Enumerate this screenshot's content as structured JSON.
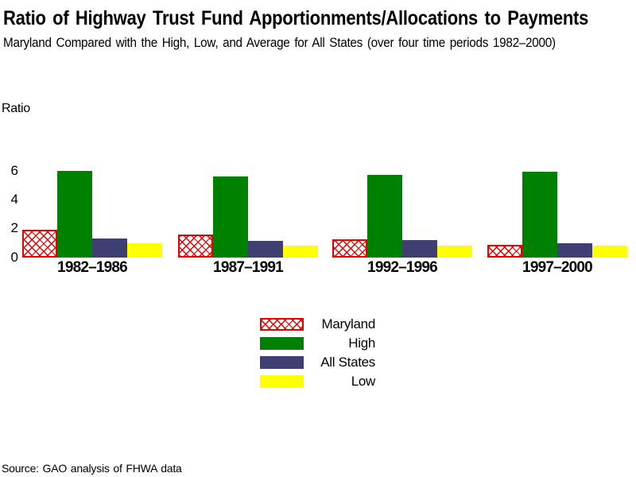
{
  "header": {
    "title": "Ratio of Highway Trust Fund Apportionments/Allocations to Payments",
    "subtitle": "Maryland Compared with the High, Low, and Average for All States (over four time periods 1982–2000)"
  },
  "chart_data": {
    "type": "bar",
    "title": "Ratio of Highway Trust Fund Apportionments/Allocations to Payments",
    "subtitle": "Maryland Compared with the High, Low, and Average for All States (over four time periods 1982–2000)",
    "ylabel": "Ratio",
    "xlabel": "",
    "ylim": [
      0,
      6
    ],
    "y_ticks": [
      0,
      2,
      4,
      6
    ],
    "grid": false,
    "legend_position": "bottom-center",
    "categories": [
      "1982–1986",
      "1987–1991",
      "1992–1996",
      "1997–2000"
    ],
    "series": [
      {
        "name": "Maryland",
        "style": "red-crosshatch",
        "color": "#e60000",
        "values": [
          1.9,
          1.6,
          1.25,
          0.9
        ]
      },
      {
        "name": "High",
        "style": "solid",
        "color": "#008000",
        "values": [
          6.0,
          5.6,
          5.75,
          5.95
        ]
      },
      {
        "name": "All States",
        "style": "solid",
        "color": "#3f3f73",
        "values": [
          1.3,
          1.15,
          1.2,
          1.0
        ]
      },
      {
        "name": "Low",
        "style": "solid",
        "color": "#ffff00",
        "values": [
          1.0,
          0.8,
          0.8,
          0.8
        ]
      }
    ]
  },
  "footer": {
    "source": "Source: GAO analysis of FHWA data"
  }
}
